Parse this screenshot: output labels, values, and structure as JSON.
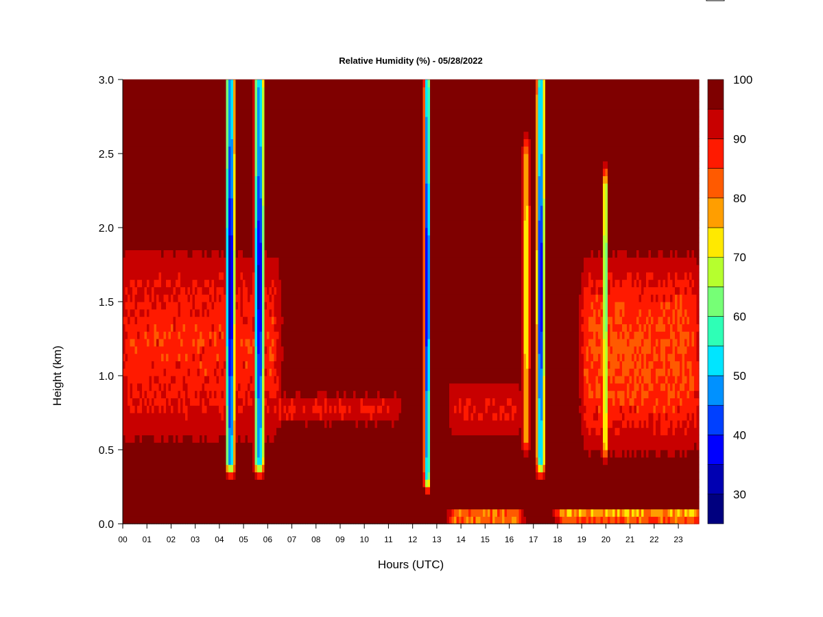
{
  "chart_data": {
    "type": "heatmap",
    "title": "Relative Humidity (%) - 05/28/2022",
    "xlabel": "Hours (UTC)",
    "ylabel": "Height (km)",
    "x_ticks": [
      "00",
      "01",
      "02",
      "03",
      "04",
      "05",
      "06",
      "07",
      "08",
      "09",
      "10",
      "11",
      "12",
      "13",
      "14",
      "15",
      "16",
      "17",
      "18",
      "19",
      "20",
      "21",
      "22",
      "23"
    ],
    "xlim": [
      0,
      23.85
    ],
    "y_ticks": [
      "0.0",
      "0.5",
      "1.0",
      "1.5",
      "2.0",
      "2.5",
      "3.0"
    ],
    "ylim": [
      0,
      3.0
    ],
    "colorbar": {
      "range": [
        25,
        100
      ],
      "tick_values": [
        30,
        40,
        50,
        60,
        70,
        80,
        90,
        100
      ],
      "tick_labels": [
        "30",
        "40",
        "50",
        "60",
        "70",
        "80",
        "90",
        "100"
      ],
      "levels": [
        {
          "from": 25,
          "to": 30,
          "color": "#00007f"
        },
        {
          "from": 30,
          "to": 35,
          "color": "#0000b2"
        },
        {
          "from": 35,
          "to": 40,
          "color": "#0000ff"
        },
        {
          "from": 40,
          "to": 45,
          "color": "#0040ff"
        },
        {
          "from": 45,
          "to": 50,
          "color": "#0091ff"
        },
        {
          "from": 50,
          "to": 55,
          "color": "#00e5ff"
        },
        {
          "from": 55,
          "to": 60,
          "color": "#2effb6"
        },
        {
          "from": 60,
          "to": 65,
          "color": "#76ff76"
        },
        {
          "from": 65,
          "to": 70,
          "color": "#b6ff2e"
        },
        {
          "from": 70,
          "to": 75,
          "color": "#ffe900"
        },
        {
          "from": 75,
          "to": 80,
          "color": "#ff9e00"
        },
        {
          "from": 80,
          "to": 85,
          "color": "#ff5a00"
        },
        {
          "from": 85,
          "to": 90,
          "color": "#ff1a00"
        },
        {
          "from": 90,
          "to": 95,
          "color": "#c80000"
        },
        {
          "from": 95,
          "to": 100,
          "color": "#7f0000"
        }
      ]
    },
    "background_rh": 98,
    "features": [
      {
        "kind": "dry_column",
        "hour": 4.45,
        "width_h": 0.45,
        "from_km": 0.35,
        "to_km": 3.0,
        "min_rh": 30
      },
      {
        "kind": "dry_column",
        "hour": 5.65,
        "width_h": 0.5,
        "from_km": 0.35,
        "to_km": 3.0,
        "min_rh": 33
      },
      {
        "kind": "dry_column",
        "hour": 12.6,
        "width_h": 0.3,
        "from_km": 0.25,
        "to_km": 3.0,
        "min_rh": 33
      },
      {
        "kind": "dry_column",
        "hour": 17.3,
        "width_h": 0.4,
        "from_km": 0.35,
        "to_km": 3.0,
        "min_rh": 35
      },
      {
        "kind": "dry_column",
        "hour": 16.7,
        "width_h": 0.35,
        "from_km": 0.5,
        "to_km": 2.5,
        "min_rh": 70
      },
      {
        "kind": "dry_column",
        "hour": 19.98,
        "width_h": 0.2,
        "from_km": 0.45,
        "to_km": 2.3,
        "min_rh": 55
      },
      {
        "kind": "moist_layer",
        "from_hour": 0.0,
        "to_hour": 6.5,
        "from_km": 0.45,
        "to_km": 1.95,
        "min_rh": 84
      },
      {
        "kind": "moist_layer",
        "from_hour": 6.0,
        "to_hour": 11.5,
        "from_km": 0.65,
        "to_km": 0.9,
        "min_rh": 88
      },
      {
        "kind": "moist_layer",
        "from_hour": 13.5,
        "to_hour": 16.5,
        "from_km": 0.55,
        "to_km": 1.0,
        "min_rh": 88
      },
      {
        "kind": "moist_layer",
        "from_hour": 19.0,
        "to_hour": 23.85,
        "from_km": 0.4,
        "to_km": 1.9,
        "min_rh": 80
      },
      {
        "kind": "surface_layer",
        "from_hour": 13.5,
        "to_hour": 16.5,
        "from_km": 0.0,
        "to_km": 0.1,
        "min_rh": 70
      },
      {
        "kind": "surface_layer",
        "from_hour": 18.0,
        "to_hour": 23.85,
        "from_km": 0.0,
        "to_km": 0.12,
        "min_rh": 70
      }
    ]
  }
}
